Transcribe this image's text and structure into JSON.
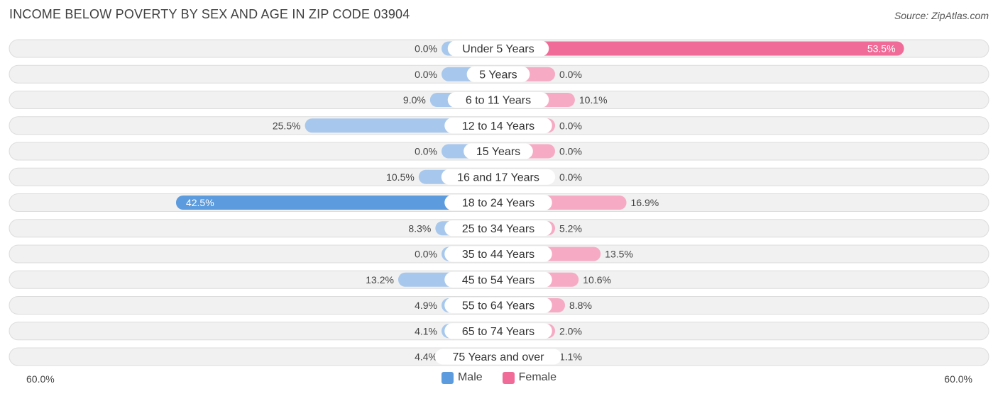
{
  "title": "INCOME BELOW POVERTY BY SEX AND AGE IN ZIP CODE 03904",
  "source": "Source: ZipAtlas.com",
  "colors": {
    "male_full": "#5b9bde",
    "male_light": "#a7c8ec",
    "female_full": "#f06b98",
    "female_light": "#f6aac4",
    "row_bg": "#f1f1f1",
    "row_border": "#dcdcdc"
  },
  "legend": {
    "male_label": "Male",
    "female_label": "Female"
  },
  "axis": {
    "left_label": "60.0%",
    "right_label": "60.0%"
  },
  "chart_data": {
    "type": "bar",
    "orientation": "horizontal-diverging",
    "max": 60,
    "categories": [
      "Under 5 Years",
      "5 Years",
      "6 to 11 Years",
      "12 to 14 Years",
      "15 Years",
      "16 and 17 Years",
      "18 to 24 Years",
      "25 to 34 Years",
      "35 to 44 Years",
      "45 to 54 Years",
      "55 to 64 Years",
      "65 to 74 Years",
      "75 Years and over"
    ],
    "series": [
      {
        "name": "Male",
        "values": [
          0.0,
          0.0,
          9.0,
          25.5,
          0.0,
          10.5,
          42.5,
          8.3,
          0.0,
          13.2,
          4.9,
          4.1,
          4.4
        ],
        "labels": [
          "0.0%",
          "0.0%",
          "9.0%",
          "25.5%",
          "0.0%",
          "10.5%",
          "42.5%",
          "8.3%",
          "0.0%",
          "13.2%",
          "4.9%",
          "4.1%",
          "4.4%"
        ]
      },
      {
        "name": "Female",
        "values": [
          53.5,
          0.0,
          10.1,
          0.0,
          0.0,
          0.0,
          16.9,
          5.2,
          13.5,
          10.6,
          8.8,
          2.0,
          1.1
        ],
        "labels": [
          "53.5%",
          "0.0%",
          "10.1%",
          "0.0%",
          "0.0%",
          "0.0%",
          "16.9%",
          "5.2%",
          "13.5%",
          "10.6%",
          "8.8%",
          "2.0%",
          "1.1%"
        ]
      }
    ]
  }
}
